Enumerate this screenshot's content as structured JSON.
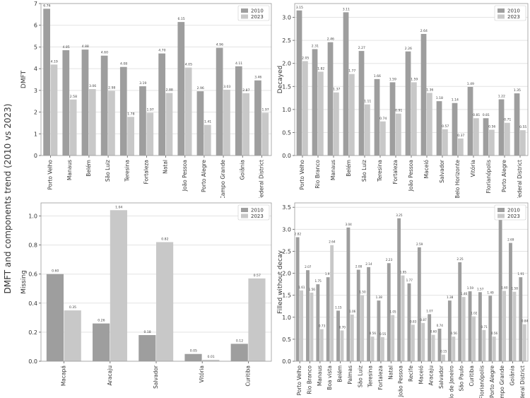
{
  "figure": {
    "suptitle": "DMFT and components trend (2010 vs 2023)",
    "colors": {
      "2010": "#9e9e9e",
      "2023": "#c8c8c8"
    }
  },
  "chart_data": [
    {
      "id": "dmft",
      "type": "bar",
      "ylabel": "DMFT",
      "xlabel": "",
      "ylim": [
        0,
        7
      ],
      "yticks": [
        0,
        1,
        2,
        3,
        4,
        5,
        6,
        7
      ],
      "tick_format": "int",
      "grid": true,
      "legend": "top-right",
      "categories": [
        "Porto Velho",
        "Manaus",
        "Belém",
        "São Luiz",
        "Teresina",
        "Fortaleza",
        "Natal",
        "João Pessoa",
        "Porto Alegre",
        "Campo Grande",
        "Goiânia",
        "Federal District"
      ],
      "series": [
        {
          "name": "2010",
          "values": [
            6.76,
            4.85,
            4.88,
            4.6,
            4.08,
            3.19,
            4.7,
            6.15,
            2.96,
            4.96,
            4.11,
            3.46
          ]
        },
        {
          "name": "2023",
          "values": [
            4.19,
            2.58,
            3.06,
            2.98,
            1.78,
            1.97,
            2.88,
            4.05,
            1.41,
            3.03,
            2.87,
            1.97
          ]
        }
      ]
    },
    {
      "id": "decayed",
      "type": "bar",
      "ylabel": "Decayed",
      "xlabel": "",
      "ylim": [
        0,
        3.3
      ],
      "yticks": [
        0.0,
        0.5,
        1.0,
        1.5,
        2.0,
        2.5,
        3.0
      ],
      "tick_format": "1dp",
      "grid": true,
      "legend": "top-right",
      "categories": [
        "Porto Velho",
        "Rio Branco",
        "Manaus",
        "Belém",
        "São Luiz",
        "Teresina",
        "Fortaleza",
        "João Pessoa",
        "Maceió",
        "Salvador",
        "Belo Horizonte",
        "Vitória",
        "Florianópolis",
        "Porto Alegre",
        "Federal District"
      ],
      "series": [
        {
          "name": "2010",
          "values": [
            3.15,
            2.31,
            2.46,
            3.11,
            2.27,
            1.66,
            1.59,
            2.26,
            2.64,
            1.18,
            1.14,
            1.49,
            0.81,
            1.22,
            1.35
          ]
        },
        {
          "name": "2023",
          "values": [
            2.05,
            1.82,
            1.37,
            1.77,
            1.11,
            0.74,
            0.91,
            1.59,
            1.36,
            0.57,
            0.37,
            0.81,
            0.56,
            0.71,
            0.55
          ]
        }
      ]
    },
    {
      "id": "missing",
      "type": "bar",
      "ylabel": "Missing",
      "xlabel": "",
      "ylim": [
        0,
        1.09
      ],
      "yticks": [
        0.0,
        0.2,
        0.4,
        0.6,
        0.8,
        1.0
      ],
      "tick_format": "1dp",
      "grid": true,
      "legend": "top-right",
      "categories": [
        "Macapá",
        "Aracaju",
        "Salvador",
        "Vitória",
        "Curitiba"
      ],
      "series": [
        {
          "name": "2010",
          "values": [
            0.6,
            0.26,
            0.18,
            0.05,
            0.12
          ]
        },
        {
          "name": "2023",
          "values": [
            0.35,
            1.04,
            0.82,
            0.01,
            0.57
          ]
        }
      ]
    },
    {
      "id": "filled",
      "type": "bar",
      "ylabel": "Filled without decay",
      "xlabel": "",
      "ylim": [
        0,
        3.6
      ],
      "yticks": [
        0.0,
        0.5,
        1.0,
        1.5,
        2.0,
        2.5,
        3.0,
        3.5
      ],
      "tick_format": "1dp",
      "grid": true,
      "legend": "top-right",
      "categories": [
        "Porto Velho",
        "Rio Branco",
        "Manaus",
        "Boa vista",
        "Belém",
        "Palmas",
        "São Luiz",
        "Teresina",
        "Fortaleza",
        "Natal",
        "João Pessoa",
        "Recife",
        "Maceió",
        "Aracaju",
        "Salvador",
        "Rio de Janeiro",
        "São Paulo",
        "Curitiba",
        "Florianópolis",
        "Porto Alegre",
        "Campo Grande",
        "Goiânia",
        "Federal District"
      ],
      "series": [
        {
          "name": "2010",
          "values": [
            2.82,
            2.07,
            1.75,
            1.91,
            1.15,
            3.04,
            2.08,
            2.14,
            1.38,
            2.23,
            3.25,
            1.77,
            2.59,
            1.07,
            0.74,
            1.38,
            2.25,
            1.59,
            1.57,
            1.49,
            3.45,
            2.69,
            1.91
          ]
        },
        {
          "name": "2023",
          "values": [
            1.61,
            1.56,
            0.73,
            2.64,
            0.7,
            1.06,
            1.5,
            0.56,
            0.55,
            1.05,
            1.95,
            0.83,
            0.87,
            0.6,
            0.15,
            0.56,
            1.46,
            1.02,
            0.71,
            0.56,
            1.6,
            1.58,
            0.84
          ]
        }
      ]
    }
  ]
}
